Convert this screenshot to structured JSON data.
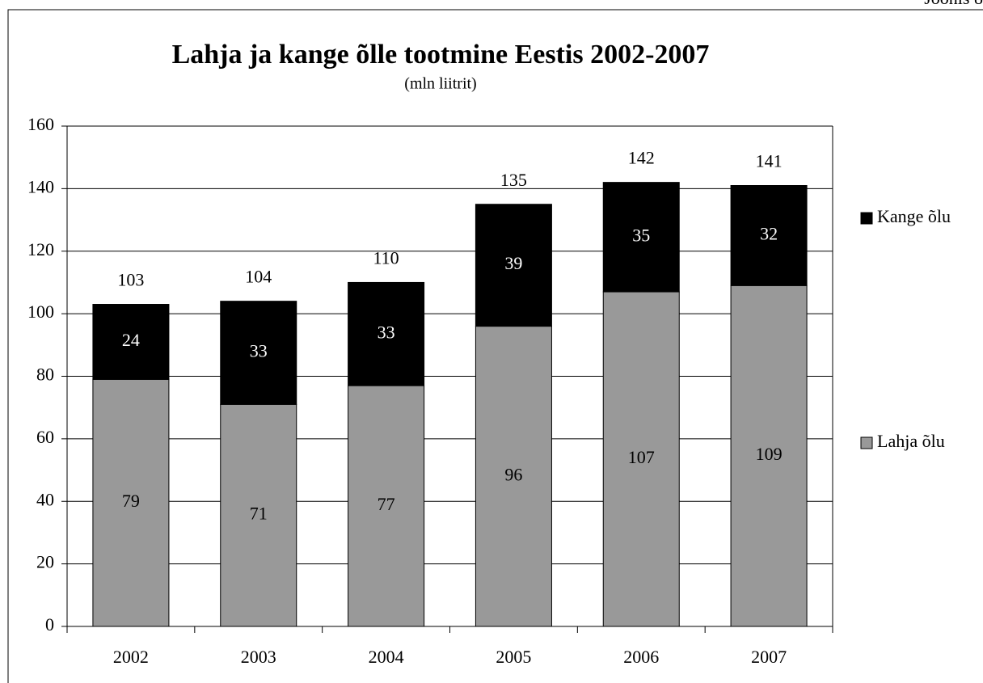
{
  "corner_label": "Joonis 8",
  "chart_data": {
    "type": "stacked_bar",
    "title": "Lahja ja kange õlle tootmine Eestis 2002-2007",
    "subtitle": "(mln liitrit)",
    "categories": [
      "2002",
      "2003",
      "2004",
      "2005",
      "2006",
      "2007"
    ],
    "series": [
      {
        "name": "Lahja õlu",
        "color": "#999999",
        "label_color": "#000000",
        "values": [
          79,
          71,
          77,
          96,
          107,
          109
        ]
      },
      {
        "name": "Kange õlu",
        "color": "#000000",
        "label_color": "#ffffff",
        "values": [
          24,
          33,
          33,
          39,
          35,
          32
        ]
      }
    ],
    "totals": [
      103,
      104,
      110,
      135,
      142,
      141
    ],
    "ylim": [
      0,
      160
    ],
    "yticks": [
      0,
      20,
      40,
      60,
      80,
      100,
      120,
      140,
      160
    ],
    "grid": true,
    "legend": "right"
  }
}
